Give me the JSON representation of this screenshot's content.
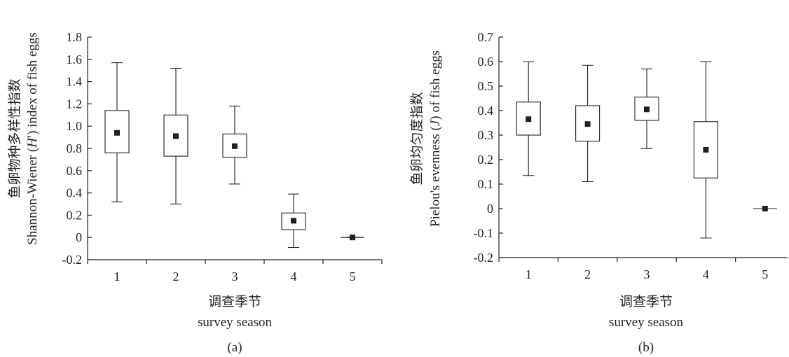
{
  "chart_data": [
    {
      "type": "box",
      "panel_label": "(a)",
      "ylabel": [
        "鱼卵物种多样性指数",
        "Shannon-Wiener (H′) index of fish eggs"
      ],
      "xlabel": [
        "调查季节",
        "survey season"
      ],
      "categories": [
        "1",
        "2",
        "3",
        "4",
        "5"
      ],
      "yticks": [
        "-0.2",
        "0",
        "0.2",
        "0.4",
        "0.6",
        "0.8",
        "1.0",
        "1.2",
        "1.4",
        "1.6",
        "1.8"
      ],
      "ylim": [
        -0.2,
        1.8
      ],
      "grid": false,
      "boxes": [
        {
          "category": "1",
          "min": 0.32,
          "q1": 0.76,
          "mean": 0.94,
          "q3": 1.14,
          "max": 1.57
        },
        {
          "category": "2",
          "min": 0.3,
          "q1": 0.73,
          "mean": 0.91,
          "q3": 1.1,
          "max": 1.52
        },
        {
          "category": "3",
          "min": 0.48,
          "q1": 0.72,
          "mean": 0.82,
          "q3": 0.93,
          "max": 1.18
        },
        {
          "category": "4",
          "min": -0.09,
          "q1": 0.07,
          "mean": 0.15,
          "q3": 0.22,
          "max": 0.39
        },
        {
          "category": "5",
          "min": 0.0,
          "q1": 0.0,
          "mean": 0.0,
          "q3": 0.0,
          "max": 0.0
        }
      ]
    },
    {
      "type": "box",
      "panel_label": "(b)",
      "ylabel": [
        "鱼卵均匀度指数",
        "Pielou's evenness (J) of fish eggs"
      ],
      "xlabel": [
        "调查季节",
        "survey season"
      ],
      "categories": [
        "1",
        "2",
        "3",
        "4",
        "5"
      ],
      "yticks": [
        "-0.2",
        "-0.1",
        "0",
        "0.1",
        "0.2",
        "0.3",
        "0.4",
        "0.5",
        "0.6",
        "0.7"
      ],
      "ylim": [
        -0.2,
        0.7
      ],
      "grid": false,
      "boxes": [
        {
          "category": "1",
          "min": 0.135,
          "q1": 0.3,
          "mean": 0.365,
          "q3": 0.435,
          "max": 0.6
        },
        {
          "category": "2",
          "min": 0.11,
          "q1": 0.275,
          "mean": 0.345,
          "q3": 0.42,
          "max": 0.585
        },
        {
          "category": "3",
          "min": 0.245,
          "q1": 0.36,
          "mean": 0.405,
          "q3": 0.455,
          "max": 0.57
        },
        {
          "category": "4",
          "min": -0.12,
          "q1": 0.125,
          "mean": 0.24,
          "q3": 0.355,
          "max": 0.6
        },
        {
          "category": "5",
          "min": 0.0,
          "q1": 0.0,
          "mean": 0.0,
          "q3": 0.0,
          "max": 0.0
        }
      ]
    }
  ]
}
